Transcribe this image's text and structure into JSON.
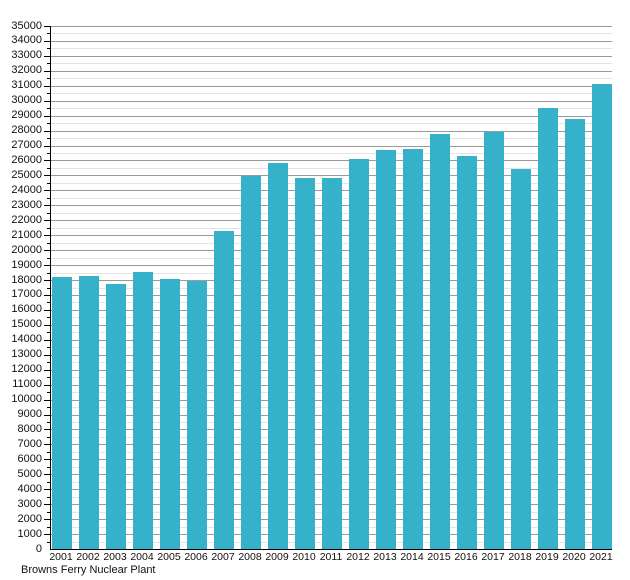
{
  "chart_data": {
    "type": "bar",
    "title": "",
    "footer": "Browns Ferry Nuclear Plant",
    "categories": [
      "2001",
      "2002",
      "2003",
      "2004",
      "2005",
      "2006",
      "2007",
      "2008",
      "2009",
      "2010",
      "2011",
      "2012",
      "2013",
      "2014",
      "2015",
      "2016",
      "2017",
      "2018",
      "2019",
      "2020",
      "2021"
    ],
    "values": [
      18200,
      18250,
      17750,
      18550,
      18050,
      17950,
      21300,
      24950,
      25850,
      24800,
      24850,
      26100,
      26700,
      26800,
      27800,
      26300,
      27900,
      25400,
      29500,
      28800,
      31100
    ],
    "xlabel": "",
    "ylabel": "",
    "ylim": [
      0,
      35000
    ],
    "y_major_step": 1000,
    "y_minor_step": 500,
    "grid": "on",
    "legend_position": "none",
    "bar_color": "#35b1c9",
    "major_grid_color": "#9a9a9a",
    "minor_grid_color": "#e4e4e4",
    "axis_color": "#000000"
  }
}
